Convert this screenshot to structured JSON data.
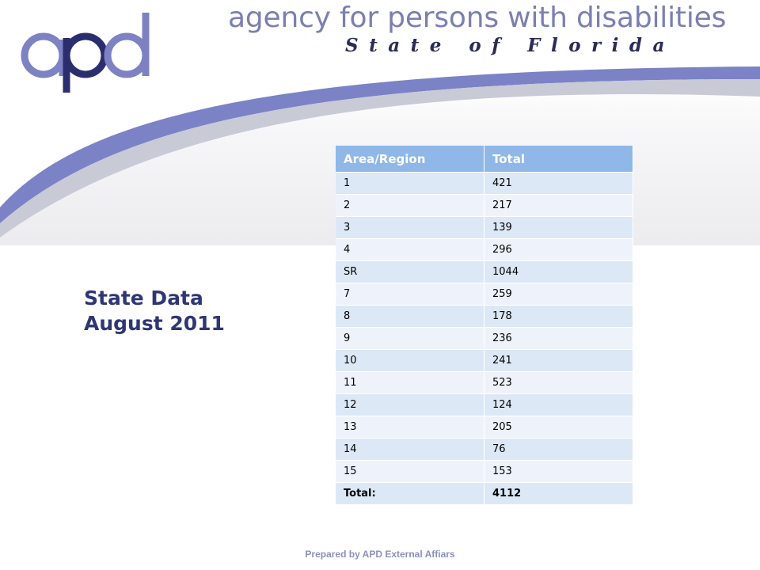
{
  "header": {
    "logo_text": "apd",
    "agency_name": "agency for persons with disabilities",
    "state_line": "State of Florida"
  },
  "title": {
    "line1": "State Data",
    "line2": "August 2011"
  },
  "table": {
    "headers": [
      "Area/Region",
      "Total"
    ],
    "rows": [
      [
        "1",
        "421"
      ],
      [
        "2",
        "217"
      ],
      [
        "3",
        "139"
      ],
      [
        "4",
        "296"
      ],
      [
        "SR",
        "1044"
      ],
      [
        "7",
        "259"
      ],
      [
        "8",
        "178"
      ],
      [
        "9",
        "236"
      ],
      [
        "10",
        "241"
      ],
      [
        "11",
        "523"
      ],
      [
        "12",
        "124"
      ],
      [
        "13",
        "205"
      ],
      [
        "14",
        "76"
      ],
      [
        "15",
        "153"
      ]
    ],
    "total_label": "Total:",
    "total_value": "4112"
  },
  "footer": {
    "text": "Prepared by APD External Affiars"
  },
  "colors": {
    "banner_swoosh": "#7b82c6",
    "title": "#2e3673",
    "table_header": "#8fb7e8",
    "row_odd": "#dde8f6",
    "row_even": "#eef3fb",
    "footer": "#8c8fbd"
  }
}
